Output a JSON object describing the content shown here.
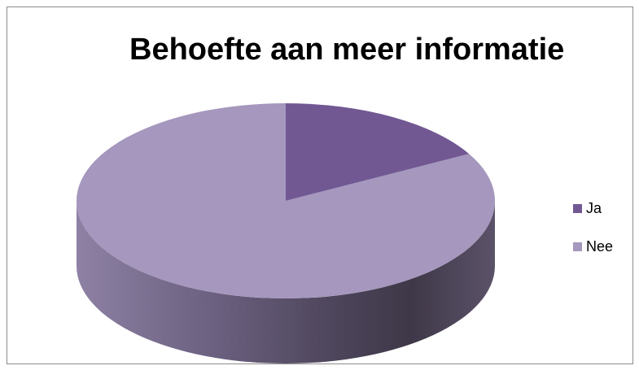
{
  "chart_data": {
    "type": "pie",
    "title": "Behoefte aan meer informatie",
    "legend_position": "right",
    "three_d": true,
    "slices": [
      {
        "label": "Ja",
        "value": 17,
        "color": "#725893"
      },
      {
        "label": "Nee",
        "value": 83,
        "color": "#a597bd"
      }
    ]
  }
}
